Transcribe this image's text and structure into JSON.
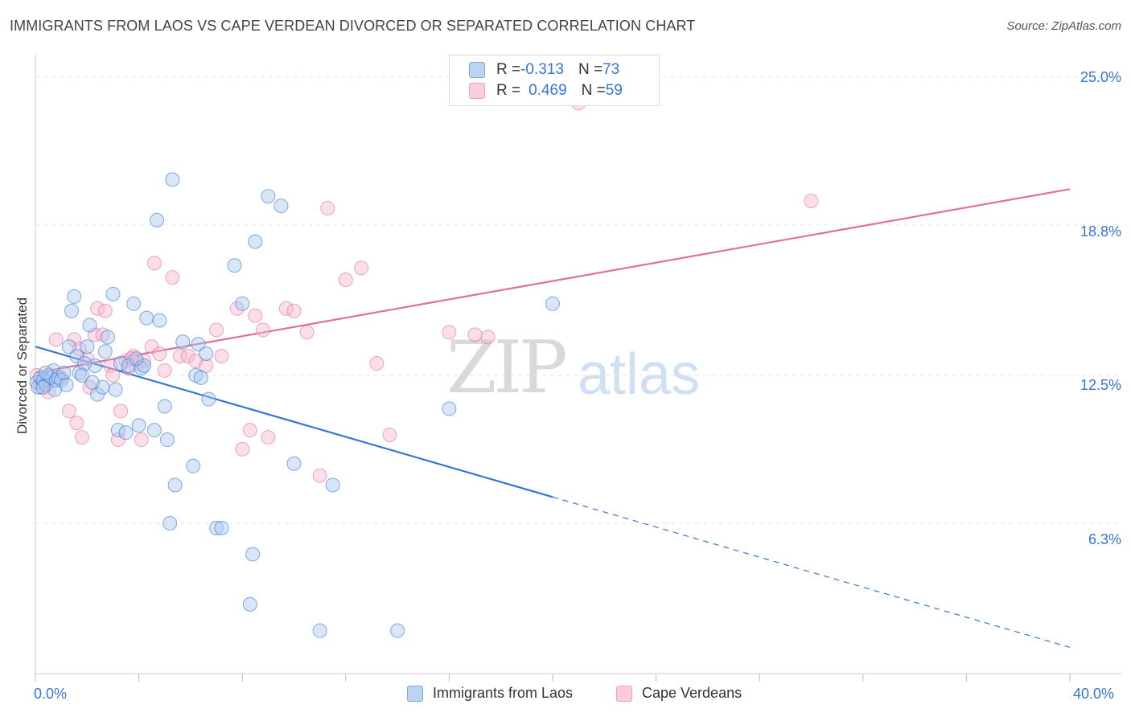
{
  "title": "IMMIGRANTS FROM LAOS VS CAPE VERDEAN DIVORCED OR SEPARATED CORRELATION CHART",
  "source": "Source: ZipAtlas.com",
  "watermark_a": "ZIP",
  "watermark_b": "atlas",
  "legend_top": {
    "row1": {
      "r_label": "R = ",
      "r_value": "-0.313",
      "n_label": "N = ",
      "n_value": "73"
    },
    "row2": {
      "r_label": "R = ",
      "r_value": "0.469",
      "n_label": "N = ",
      "n_value": "59"
    }
  },
  "colors": {
    "blue": "#3575d3",
    "blue_fill": "#a9c8f0",
    "pink": "#e0709a",
    "pink_fill": "#f5b7cc",
    "grid": "#e3e3e3"
  },
  "chart_data": {
    "type": "scatter",
    "title": "IMMIGRANTS FROM LAOS VS CAPE VERDEAN DIVORCED OR SEPARATED CORRELATION CHART",
    "xlabel": "",
    "ylabel": "Divorced or Separated",
    "xlim": [
      0,
      40
    ],
    "ylim": [
      0,
      25.8
    ],
    "x_tick_labels": [
      "0.0%",
      "40.0%"
    ],
    "y_ticks": [
      6.3,
      12.5,
      18.8,
      25.0
    ],
    "y_tick_labels": [
      "6.3%",
      "12.5%",
      "18.8%",
      "25.0%"
    ],
    "grid": true,
    "legend_position": "bottom",
    "series": [
      {
        "name": "Immigrants from Laos",
        "color": "#3575d3",
        "trend": {
          "x": [
            0,
            40
          ],
          "y": [
            13.7,
            1.1
          ],
          "solid_until_x": 20
        },
        "points": [
          [
            0.05,
            12.2
          ],
          [
            0.1,
            12.0
          ],
          [
            0.2,
            12.4
          ],
          [
            0.3,
            12.3
          ],
          [
            0.4,
            12.1
          ],
          [
            0.5,
            12.5
          ],
          [
            0.6,
            12.4
          ],
          [
            0.7,
            12.7
          ],
          [
            0.75,
            11.9
          ],
          [
            0.8,
            12.3
          ],
          [
            0.9,
            12.4
          ],
          [
            1.0,
            12.3
          ],
          [
            1.1,
            12.6
          ],
          [
            1.3,
            13.7
          ],
          [
            1.4,
            15.2
          ],
          [
            1.5,
            15.8
          ],
          [
            1.6,
            13.3
          ],
          [
            1.7,
            12.6
          ],
          [
            1.8,
            12.5
          ],
          [
            2.0,
            13.7
          ],
          [
            2.1,
            14.6
          ],
          [
            2.3,
            12.9
          ],
          [
            2.4,
            11.7
          ],
          [
            2.6,
            12.0
          ],
          [
            2.7,
            13.5
          ],
          [
            2.8,
            14.1
          ],
          [
            3.0,
            15.9
          ],
          [
            3.1,
            11.9
          ],
          [
            3.2,
            10.2
          ],
          [
            3.3,
            13.0
          ],
          [
            3.5,
            10.1
          ],
          [
            3.6,
            12.9
          ],
          [
            3.8,
            15.5
          ],
          [
            4.0,
            10.4
          ],
          [
            4.1,
            12.8
          ],
          [
            4.2,
            12.9
          ],
          [
            4.3,
            14.9
          ],
          [
            4.6,
            10.2
          ],
          [
            4.7,
            19.0
          ],
          [
            4.8,
            14.8
          ],
          [
            5.0,
            11.2
          ],
          [
            5.1,
            9.8
          ],
          [
            5.2,
            6.3
          ],
          [
            5.3,
            20.7
          ],
          [
            5.4,
            7.9
          ],
          [
            5.7,
            13.9
          ],
          [
            6.1,
            8.7
          ],
          [
            6.2,
            12.5
          ],
          [
            6.3,
            13.8
          ],
          [
            6.4,
            12.4
          ],
          [
            6.6,
            13.4
          ],
          [
            6.7,
            11.5
          ],
          [
            7.0,
            6.1
          ],
          [
            7.2,
            6.1
          ],
          [
            7.7,
            17.1
          ],
          [
            8.0,
            15.5
          ],
          [
            8.3,
            2.9
          ],
          [
            8.4,
            5.0
          ],
          [
            8.5,
            18.1
          ],
          [
            9.0,
            20.0
          ],
          [
            9.5,
            19.6
          ],
          [
            10.0,
            8.8
          ],
          [
            11.0,
            1.8
          ],
          [
            11.5,
            7.9
          ],
          [
            14.0,
            1.8
          ],
          [
            16.0,
            11.1
          ],
          [
            20.0,
            15.5
          ],
          [
            3.9,
            13.2
          ],
          [
            2.2,
            12.2
          ],
          [
            1.9,
            13.0
          ],
          [
            0.4,
            12.6
          ],
          [
            1.2,
            12.1
          ],
          [
            0.3,
            12.0
          ]
        ]
      },
      {
        "name": "Cape Verdeans",
        "color": "#e0709a",
        "trend": {
          "x": [
            0,
            40
          ],
          "y": [
            12.6,
            20.3
          ]
        },
        "points": [
          [
            0.05,
            12.5
          ],
          [
            0.2,
            12.0
          ],
          [
            0.3,
            12.2
          ],
          [
            0.5,
            11.8
          ],
          [
            0.8,
            14.0
          ],
          [
            1.0,
            12.4
          ],
          [
            1.3,
            11.0
          ],
          [
            1.5,
            14.0
          ],
          [
            1.6,
            10.5
          ],
          [
            1.8,
            9.9
          ],
          [
            2.0,
            13.2
          ],
          [
            2.1,
            12.0
          ],
          [
            2.3,
            14.2
          ],
          [
            2.4,
            15.3
          ],
          [
            2.6,
            14.2
          ],
          [
            2.7,
            15.2
          ],
          [
            2.9,
            12.9
          ],
          [
            3.0,
            12.5
          ],
          [
            3.2,
            9.8
          ],
          [
            3.3,
            11.0
          ],
          [
            3.5,
            13.1
          ],
          [
            3.6,
            12.8
          ],
          [
            3.8,
            13.3
          ],
          [
            4.0,
            13.0
          ],
          [
            4.1,
            9.8
          ],
          [
            4.2,
            13.1
          ],
          [
            4.5,
            13.7
          ],
          [
            4.6,
            17.2
          ],
          [
            4.8,
            13.4
          ],
          [
            5.0,
            12.7
          ],
          [
            5.3,
            16.6
          ],
          [
            5.6,
            13.3
          ],
          [
            5.9,
            13.3
          ],
          [
            6.2,
            13.1
          ],
          [
            6.6,
            12.9
          ],
          [
            7.0,
            14.4
          ],
          [
            7.2,
            13.3
          ],
          [
            7.8,
            15.3
          ],
          [
            8.0,
            9.4
          ],
          [
            8.3,
            10.2
          ],
          [
            8.5,
            15.0
          ],
          [
            8.8,
            14.4
          ],
          [
            9.0,
            9.9
          ],
          [
            9.7,
            15.3
          ],
          [
            10.0,
            15.2
          ],
          [
            10.5,
            14.3
          ],
          [
            11.0,
            8.3
          ],
          [
            11.3,
            19.5
          ],
          [
            12.0,
            16.5
          ],
          [
            12.6,
            17.0
          ],
          [
            13.2,
            13.0
          ],
          [
            13.7,
            10.0
          ],
          [
            16.0,
            14.3
          ],
          [
            17.0,
            14.2
          ],
          [
            17.5,
            14.1
          ],
          [
            21.0,
            23.9
          ],
          [
            30.0,
            19.8
          ],
          [
            3.7,
            13.2
          ],
          [
            1.7,
            13.6
          ]
        ]
      }
    ]
  }
}
